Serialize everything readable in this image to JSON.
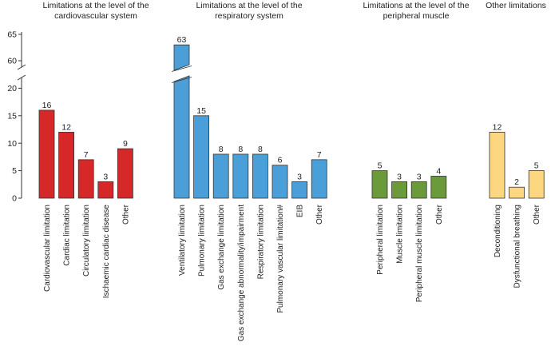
{
  "chart_data": {
    "type": "bar",
    "title": "",
    "xlabel": "",
    "ylabel": "",
    "yaxis": {
      "broken": true,
      "lower_range": [
        0,
        22
      ],
      "upper_range": [
        58,
        65
      ],
      "ticks": [
        0,
        5,
        10,
        15,
        20,
        60,
        65
      ]
    },
    "groups": [
      {
        "title_lines": [
          "Limitations at the level of the",
          "cardiovascular system"
        ],
        "color": "#d62828",
        "categories": [
          "Cardiovascular limitation",
          "Cardiac limitation",
          "Circulatory limitation",
          "Ischaemic cardiac disease",
          "Other"
        ],
        "values": [
          16,
          12,
          7,
          3,
          9
        ]
      },
      {
        "title_lines": [
          "Limitations at the level of the",
          "respiratory system"
        ],
        "color": "#4a9fd9",
        "categories": [
          "Ventilatory limitation",
          "Pulmonary limitation",
          "Gas exchange limitation",
          "Gas exchange abnormality/impairment",
          "Respiratory limitation",
          "Pulmonary vascular limitation#",
          "EIB",
          "Other"
        ],
        "values": [
          63,
          15,
          8,
          8,
          8,
          6,
          3,
          7
        ]
      },
      {
        "title_lines": [
          "Limitations at the level of the",
          "peripheral muscle"
        ],
        "color": "#6a9a3a",
        "categories": [
          "Peripheral limitation",
          "Muscle limitation",
          "Peripheral muscle limitation",
          "Other"
        ],
        "values": [
          5,
          3,
          3,
          4
        ]
      },
      {
        "title_lines": [
          "Other limitations"
        ],
        "color": "#fcd77f",
        "categories": [
          "Deconditioning",
          "Dysfunctional breathing",
          "Other"
        ],
        "values": [
          12,
          2,
          5
        ]
      }
    ]
  }
}
